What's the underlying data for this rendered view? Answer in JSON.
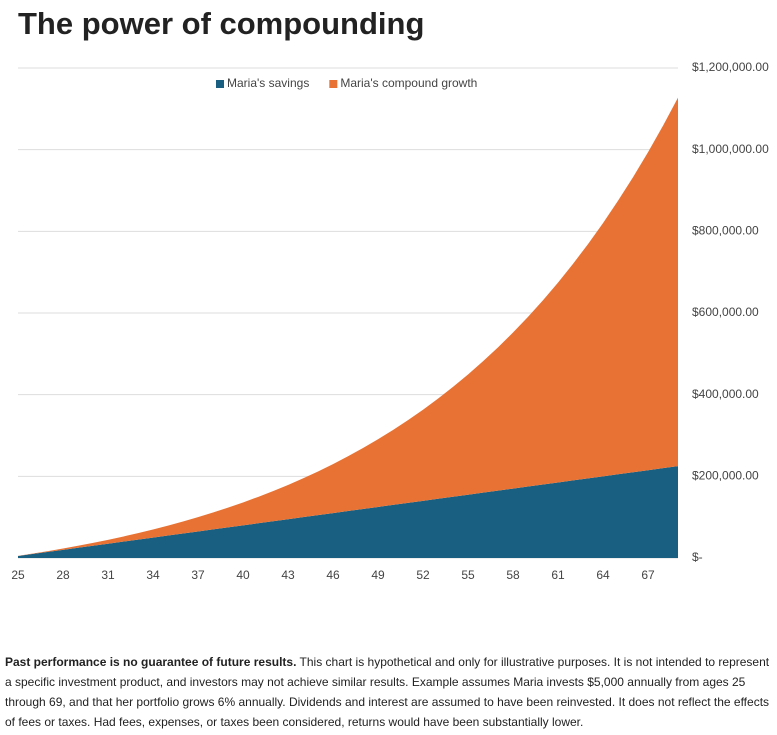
{
  "chart_data": {
    "type": "stacked_area",
    "title": "The power of compounding",
    "x": [
      25,
      26,
      27,
      28,
      29,
      30,
      31,
      32,
      33,
      34,
      35,
      36,
      37,
      38,
      39,
      40,
      41,
      42,
      43,
      44,
      45,
      46,
      47,
      48,
      49,
      50,
      51,
      52,
      53,
      54,
      55,
      56,
      57,
      58,
      59,
      60,
      61,
      62,
      63,
      64,
      65,
      66,
      67,
      68,
      69
    ],
    "xlim": [
      25,
      69
    ],
    "xticks": [
      25,
      28,
      31,
      34,
      37,
      40,
      43,
      46,
      49,
      52,
      55,
      58,
      61,
      64,
      67
    ],
    "ylim": [
      0,
      1200000
    ],
    "yticks": [
      {
        "value": 0,
        "label": "$-"
      },
      {
        "value": 200000,
        "label": "$200,000.00"
      },
      {
        "value": 400000,
        "label": "$400,000.00"
      },
      {
        "value": 600000,
        "label": "$600,000.00"
      },
      {
        "value": 800000,
        "label": "$800,000.00"
      },
      {
        "value": 1000000,
        "label": "$1,000,000.00"
      },
      {
        "value": 1200000,
        "label": "$1,200,000.00"
      }
    ],
    "grid": true,
    "series": [
      {
        "name": "Maria's savings",
        "color": "#185f82",
        "values": [
          5000,
          10000,
          15000,
          20000,
          25000,
          30000,
          35000,
          40000,
          45000,
          50000,
          55000,
          60000,
          65000,
          70000,
          75000,
          80000,
          85000,
          90000,
          95000,
          100000,
          105000,
          110000,
          115000,
          120000,
          125000,
          130000,
          135000,
          140000,
          145000,
          150000,
          155000,
          160000,
          165000,
          170000,
          175000,
          180000,
          185000,
          190000,
          195000,
          200000,
          205000,
          210000,
          215000,
          220000,
          225000
        ]
      },
      {
        "name": "Maria's compound growth",
        "color": "#e87233",
        "values": [
          300,
          918,
          1873,
          3185,
          4877,
          6969,
          9487,
          12455,
          15903,
          19858,
          24350,
          29411,
          35075,
          41380,
          48363,
          56064,
          64528,
          73799,
          83927,
          94963,
          106961,
          119979,
          134078,
          149323,
          165782,
          183529,
          202641,
          223199,
          245291,
          269008,
          294448,
          321716,
          350919,
          382174,
          415604,
          451342,
          489521,
          530292,
          573810,
          620238,
          669753,
          722538,
          778790,
          838718,
          902541
        ]
      }
    ]
  },
  "footnote": {
    "bold": "Past performance is no guarantee of future results.",
    "text": " This chart is hypothetical and only for illustrative purposes. It is not intended to represent a specific investment product, and investors may not achieve similar results. Example assumes Maria invests $5,000 annually from ages 25 through 69, and that her portfolio grows 6% annually. Dividends and interest are assumed to have been reinvested. It does not reflect the effects of fees or taxes. Had fees, expenses, or taxes been considered, returns would have been substantially lower."
  }
}
